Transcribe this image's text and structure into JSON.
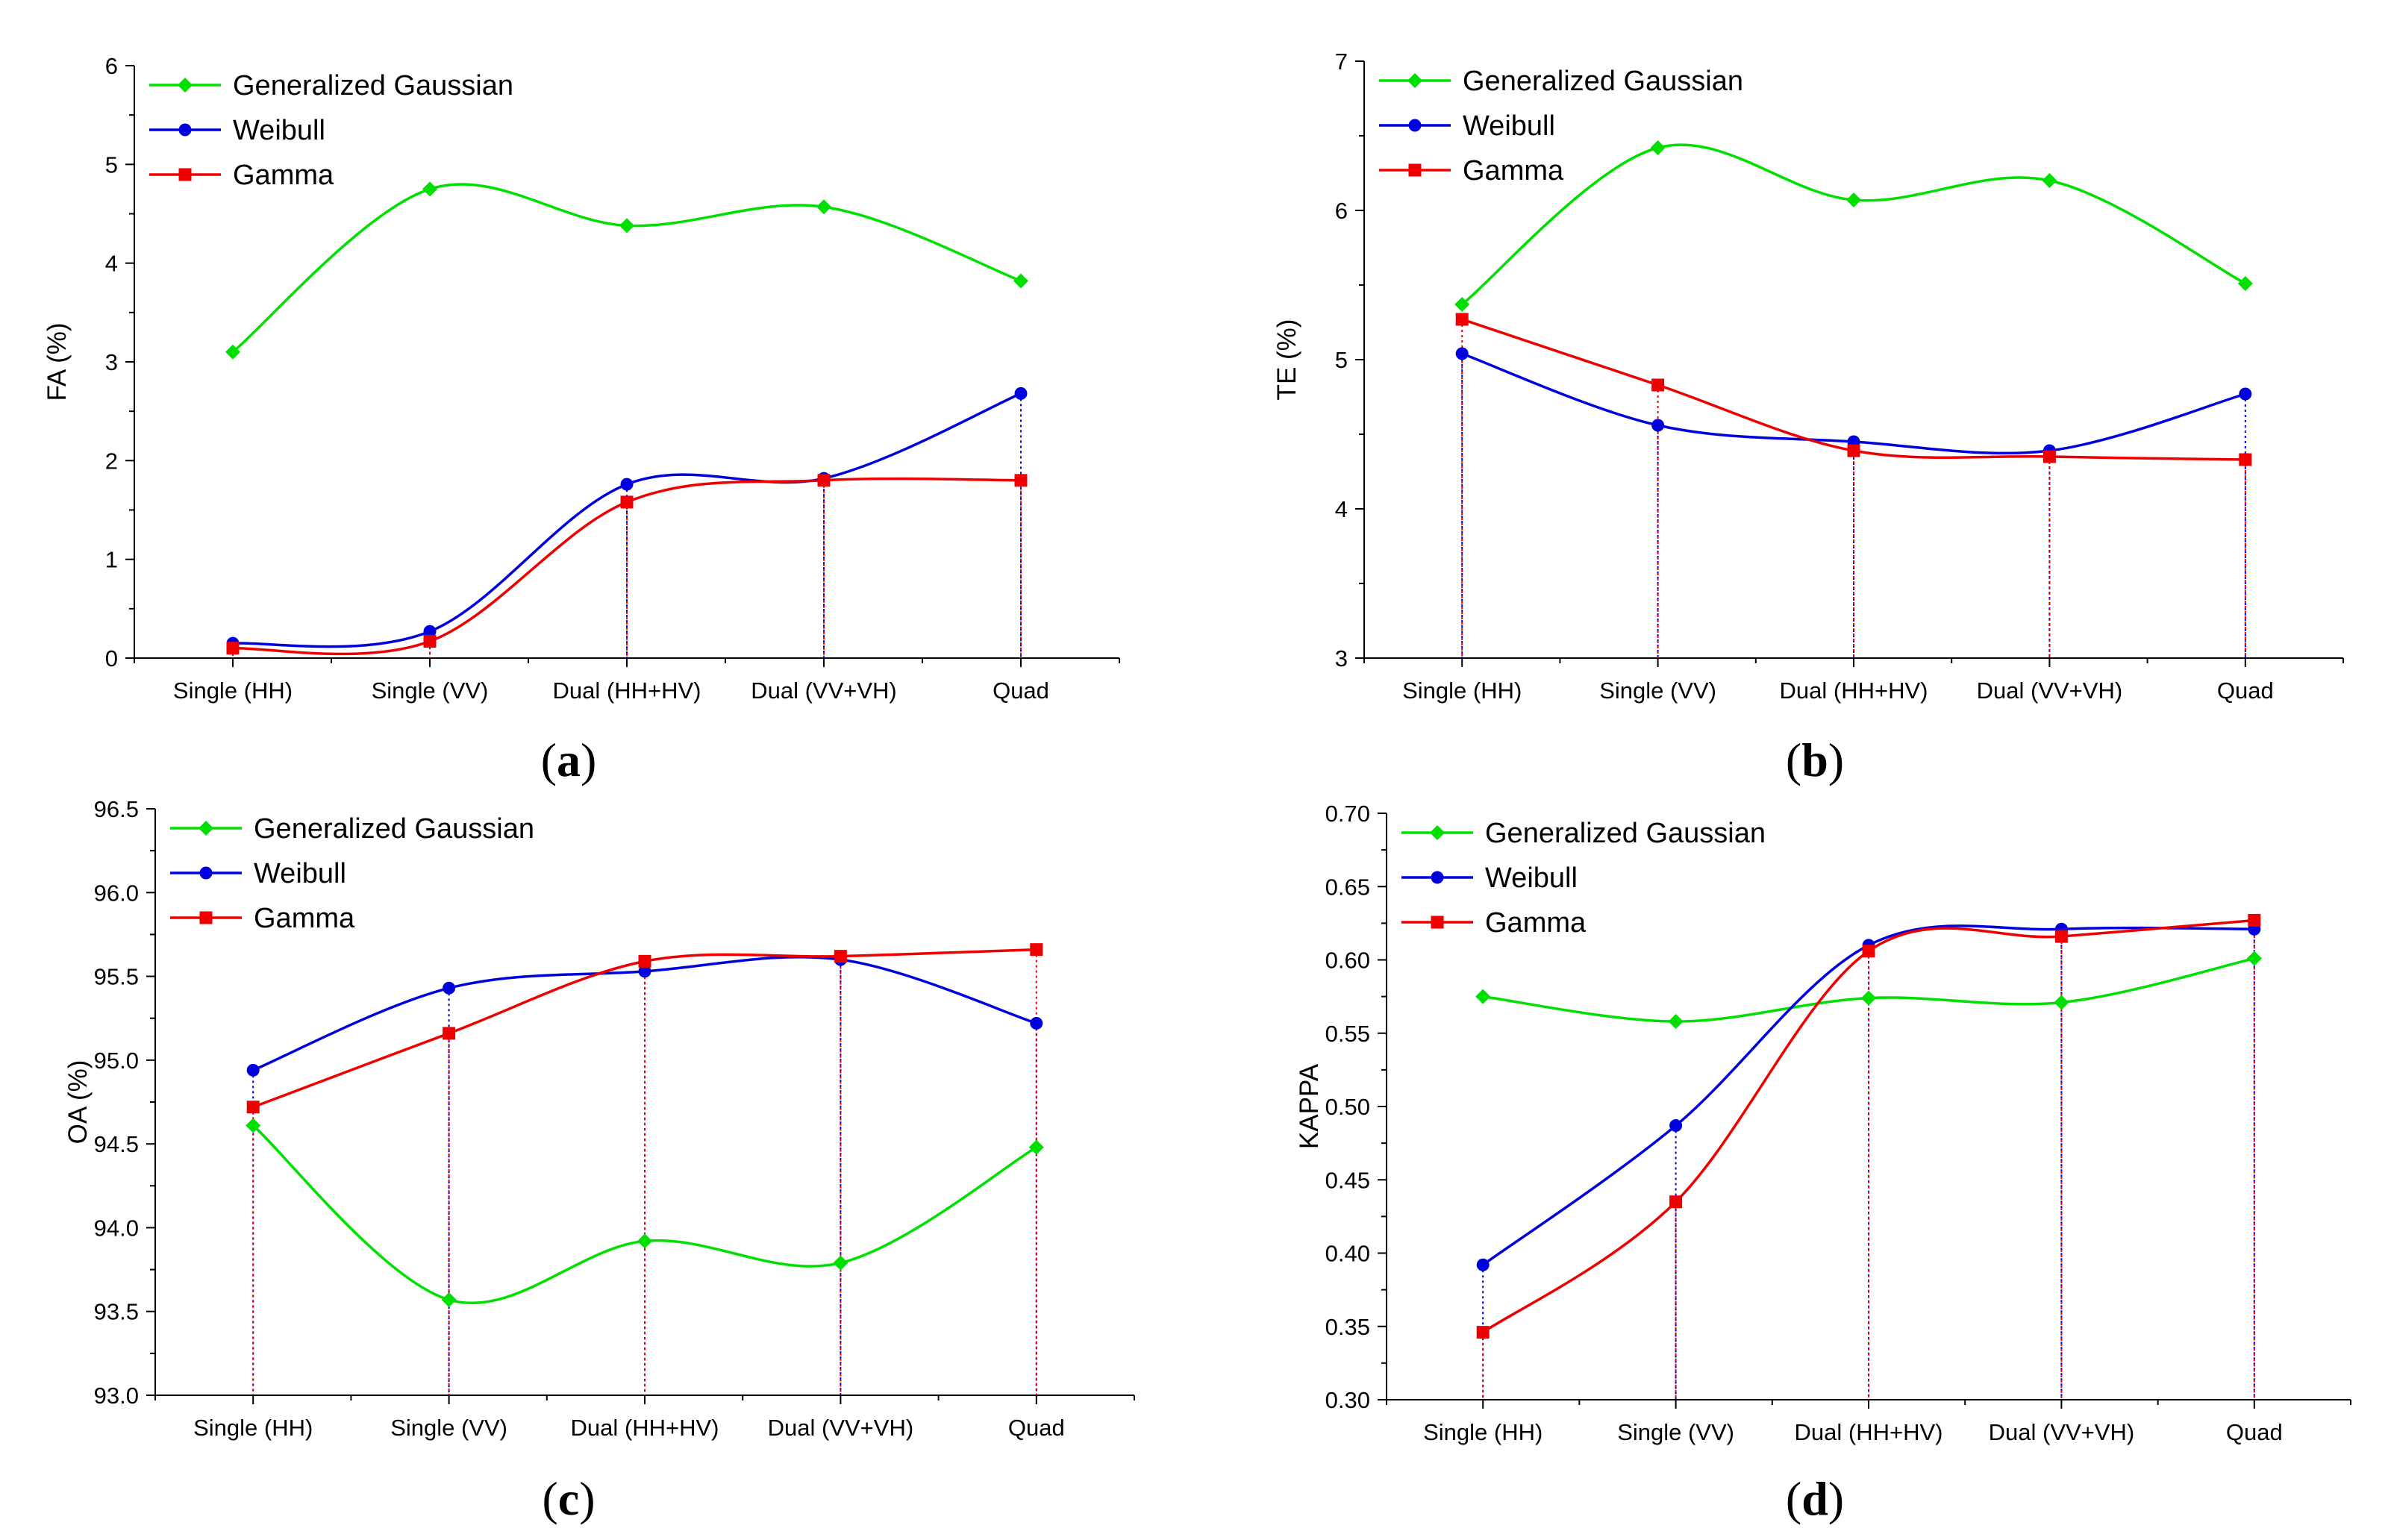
{
  "chart_data": [
    {
      "panel": "(a)",
      "type": "line",
      "ylabel": "FA (%)",
      "xlabel": "",
      "ylim": [
        0,
        6
      ],
      "yticks": [
        "0",
        "1",
        "2",
        "3",
        "4",
        "5",
        "6"
      ],
      "categories": [
        "Single (HH)",
        "Single (VV)",
        "Dual (HH+HV)",
        "Dual (VV+VH)",
        "Quad"
      ],
      "legend_position": "top-left",
      "series": [
        {
          "name": "Generalized Gaussian",
          "color": "#00e000",
          "marker": "diamond",
          "values": [
            3.1,
            4.75,
            4.38,
            4.57,
            3.82
          ]
        },
        {
          "name": "Weibull",
          "color": "#0000dd",
          "marker": "circle",
          "values": [
            0.15,
            0.27,
            1.76,
            1.82,
            2.68
          ]
        },
        {
          "name": "Gamma",
          "color": "#ee0000",
          "marker": "square",
          "values": [
            0.1,
            0.17,
            1.58,
            1.8,
            1.8
          ]
        }
      ]
    },
    {
      "panel": "(b)",
      "type": "line",
      "ylabel": "TE (%)",
      "xlabel": "",
      "ylim": [
        3,
        7
      ],
      "yticks": [
        "3",
        "4",
        "5",
        "6",
        "7"
      ],
      "categories": [
        "Single (HH)",
        "Single (VV)",
        "Dual (HH+HV)",
        "Dual (VV+VH)",
        "Quad"
      ],
      "legend_position": "top-left",
      "series": [
        {
          "name": "Generalized Gaussian",
          "color": "#00e000",
          "marker": "diamond",
          "values": [
            5.37,
            6.42,
            6.07,
            6.2,
            5.51
          ]
        },
        {
          "name": "Weibull",
          "color": "#0000dd",
          "marker": "circle",
          "values": [
            5.04,
            4.56,
            4.45,
            4.39,
            4.77
          ]
        },
        {
          "name": "Gamma",
          "color": "#ee0000",
          "marker": "square",
          "values": [
            5.27,
            4.83,
            4.39,
            4.35,
            4.33
          ]
        }
      ]
    },
    {
      "panel": "(c)",
      "type": "line",
      "ylabel": "OA (%)",
      "xlabel": "",
      "ylim": [
        93.0,
        96.5
      ],
      "yticks": [
        "93.0",
        "93.5",
        "94.0",
        "94.5",
        "95.0",
        "95.5",
        "96.0",
        "96.5"
      ],
      "categories": [
        "Single (HH)",
        "Single (VV)",
        "Dual (HH+HV)",
        "Dual (VV+VH)",
        "Quad"
      ],
      "legend_position": "top-left",
      "series": [
        {
          "name": "Generalized Gaussian",
          "color": "#00e000",
          "marker": "diamond",
          "values": [
            94.61,
            93.57,
            93.92,
            93.79,
            94.48
          ]
        },
        {
          "name": "Weibull",
          "color": "#0000dd",
          "marker": "circle",
          "values": [
            94.94,
            95.43,
            95.53,
            95.6,
            95.22
          ]
        },
        {
          "name": "Gamma",
          "color": "#ee0000",
          "marker": "square",
          "values": [
            94.72,
            95.16,
            95.59,
            95.62,
            95.66
          ]
        }
      ]
    },
    {
      "panel": "(d)",
      "type": "line",
      "ylabel": "KAPPA",
      "xlabel": "",
      "ylim": [
        0.3,
        0.7
      ],
      "yticks": [
        "0.30",
        "0.35",
        "0.40",
        "0.45",
        "0.50",
        "0.55",
        "0.60",
        "0.65",
        "0.70"
      ],
      "categories": [
        "Single (HH)",
        "Single (VV)",
        "Dual (HH+HV)",
        "Dual (VV+VH)",
        "Quad"
      ],
      "legend_position": "top-left",
      "series": [
        {
          "name": "Generalized Gaussian",
          "color": "#00e000",
          "marker": "diamond",
          "values": [
            0.575,
            0.558,
            0.574,
            0.571,
            0.601
          ]
        },
        {
          "name": "Weibull",
          "color": "#0000dd",
          "marker": "circle",
          "values": [
            0.392,
            0.487,
            0.61,
            0.621,
            0.621
          ]
        },
        {
          "name": "Gamma",
          "color": "#ee0000",
          "marker": "square",
          "values": [
            0.346,
            0.435,
            0.606,
            0.616,
            0.627
          ]
        }
      ]
    }
  ]
}
